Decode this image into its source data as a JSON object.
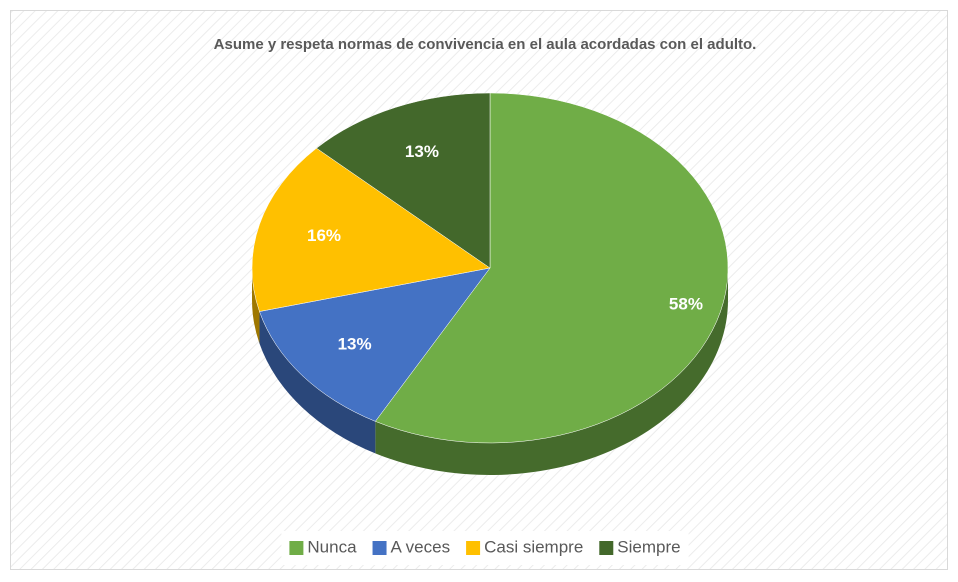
{
  "chart_data": {
    "type": "pie",
    "title": "Asume y respeta normas de convivencia en el aula acordadas con el adulto.",
    "categories": [
      "Nunca",
      "A veces",
      "Casi siempre",
      "Siempre"
    ],
    "values": [
      58,
      13,
      16,
      13
    ],
    "value_labels": [
      "58%",
      "13%",
      "16%",
      "13%"
    ],
    "colors": [
      "#70ad47",
      "#4472c4",
      "#ffc000",
      "#43682b"
    ],
    "legend": "bottom"
  }
}
